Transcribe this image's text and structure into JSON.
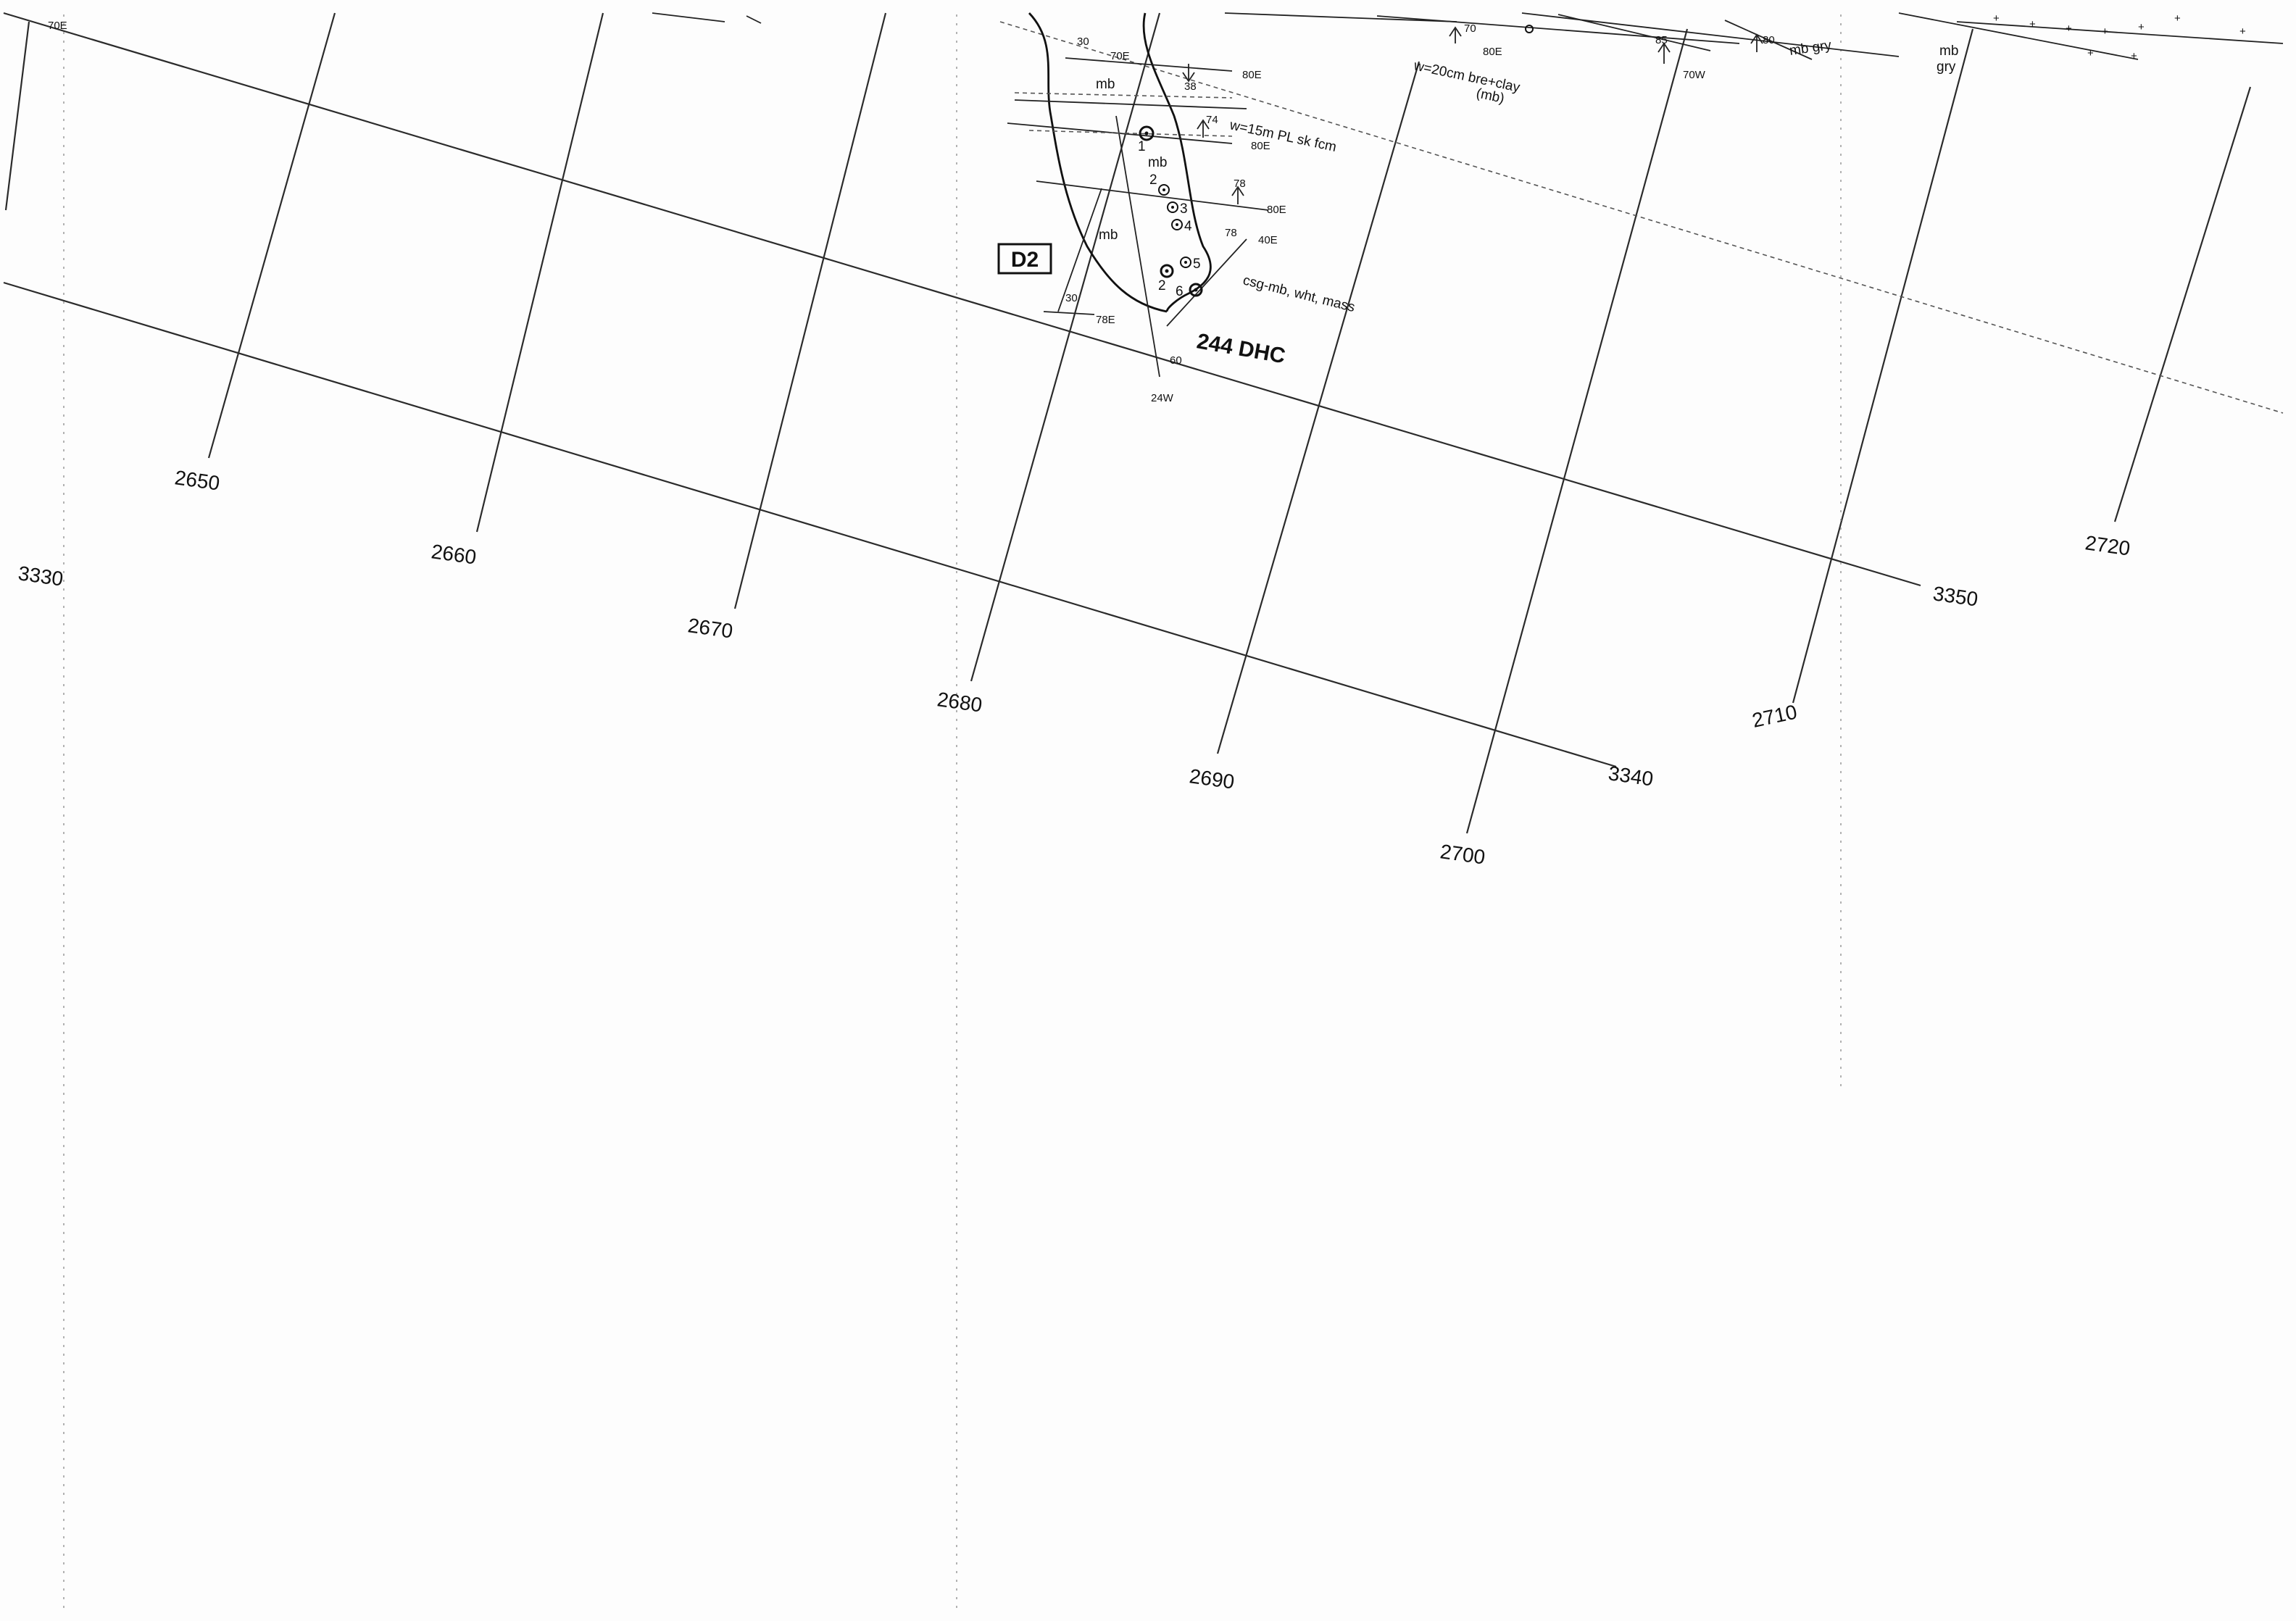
{
  "map": {
    "background_color": "#fdfdfd",
    "ink_color": "#111111",
    "grid_labels": {
      "northing_2650": "2650",
      "northing_2660": "2660",
      "northing_2670": "2670",
      "northing_2680": "2680",
      "northing_2690": "2690",
      "northing_2700": "2700",
      "northing_2710": "2710",
      "northing_2720": "2720",
      "easting_3330": "3330",
      "easting_3340": "3340",
      "easting_3350": "3350"
    },
    "station_label": "D2",
    "zone_label": "244 DHC",
    "annotations": {
      "mb_1": "mb",
      "mb_2": "mb",
      "mb_3": "mb",
      "mb_gry_1": "mb gry",
      "mb_gry_2": "mb",
      "mb_gry_3": "gry",
      "pl_note": "w=15m PL sk fcm",
      "bre_note": "w=20cm bre+clay",
      "bre_note_2": "(mb)",
      "csg_note": "csg-mb, wht, mass"
    },
    "attitudes": {
      "a_70e_top": "70E",
      "a_30_top": "30",
      "a_70e": "70E",
      "a_38": "38",
      "a_80e_1": "80E",
      "a_74": "74",
      "a_80e_2": "80E",
      "a_78_1": "78",
      "a_80e_3": "80E",
      "a_78_2": "78",
      "a_40e": "40E",
      "a_30_low": "30",
      "a_78e": "78E",
      "a_60": "60",
      "a_24w": "24W",
      "a_70": "70",
      "a_80e_4": "80E",
      "a_85": "85",
      "a_70w": "70W",
      "a_80": "80"
    },
    "samples": {
      "s1": "1",
      "s2": "2",
      "s3": "3",
      "s4": "4",
      "s5": "5",
      "s2b": "2",
      "s6": "6"
    }
  }
}
